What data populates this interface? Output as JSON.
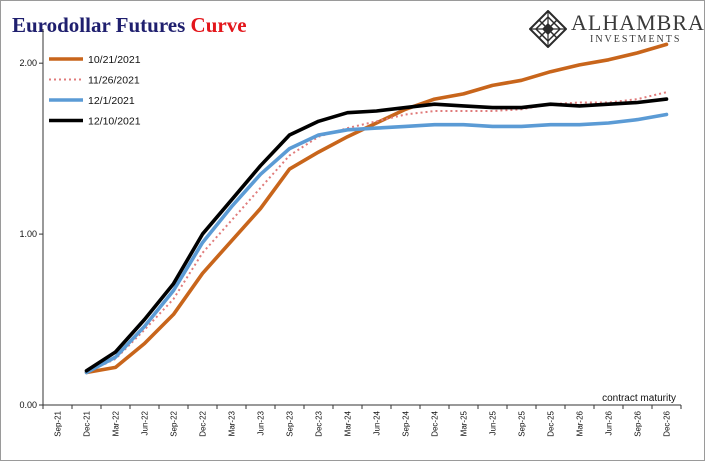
{
  "header": {
    "title_main": "Eurodollar Futures",
    "title_accent": "Curve",
    "title_color": "#1f1f6e",
    "accent_color": "#e3161b"
  },
  "logo": {
    "name": "ALHAMBRA",
    "subtitle": "INVESTMENTS",
    "icon": "diamond-lattice-icon"
  },
  "chart_data": {
    "type": "line",
    "categories": [
      "Sep-21",
      "Dec-21",
      "Mar-22",
      "Jun-22",
      "Sep-22",
      "Dec-22",
      "Mar-23",
      "Jun-23",
      "Sep-23",
      "Dec-23",
      "Mar-24",
      "Jun-24",
      "Sep-24",
      "Dec-24",
      "Mar-25",
      "Jun-25",
      "Sep-25",
      "Dec-25",
      "Mar-26",
      "Jun-26",
      "Sep-26",
      "Dec-26"
    ],
    "ylim": [
      0,
      2.2
    ],
    "yticks": [
      "0.00",
      "1.00",
      "2.00"
    ],
    "ytick_values": [
      0,
      1,
      2
    ],
    "xlabel": "contract maturity",
    "ylabel": "",
    "legend_position": "top-left",
    "grid": false,
    "series": [
      {
        "name": "10/21/2021",
        "color": "#c8651b",
        "style": "solid",
        "values": [
          null,
          0.19,
          0.22,
          0.36,
          0.53,
          0.77,
          0.96,
          1.15,
          1.38,
          1.48,
          1.57,
          1.65,
          1.73,
          1.79,
          1.82,
          1.87,
          1.9,
          1.95,
          1.99,
          2.02,
          2.06,
          2.11
        ]
      },
      {
        "name": "11/26/2021",
        "color": "#e07b7b",
        "style": "dotted",
        "values": [
          null,
          0.19,
          0.27,
          0.44,
          0.62,
          0.89,
          1.08,
          1.27,
          1.46,
          1.57,
          1.62,
          1.66,
          1.7,
          1.72,
          1.72,
          1.72,
          1.73,
          1.76,
          1.77,
          1.77,
          1.79,
          1.83
        ]
      },
      {
        "name": "12/1/2021",
        "color": "#5b9bd5",
        "style": "solid",
        "values": [
          null,
          0.19,
          0.28,
          0.46,
          0.67,
          0.95,
          1.16,
          1.35,
          1.5,
          1.58,
          1.61,
          1.62,
          1.63,
          1.64,
          1.64,
          1.63,
          1.63,
          1.64,
          1.64,
          1.65,
          1.67,
          1.7
        ]
      },
      {
        "name": "12/10/2021",
        "color": "#000000",
        "style": "solid",
        "values": [
          null,
          0.2,
          0.31,
          0.5,
          0.71,
          1.0,
          1.2,
          1.4,
          1.58,
          1.66,
          1.71,
          1.72,
          1.74,
          1.76,
          1.75,
          1.74,
          1.74,
          1.76,
          1.75,
          1.76,
          1.77,
          1.79
        ]
      }
    ]
  }
}
